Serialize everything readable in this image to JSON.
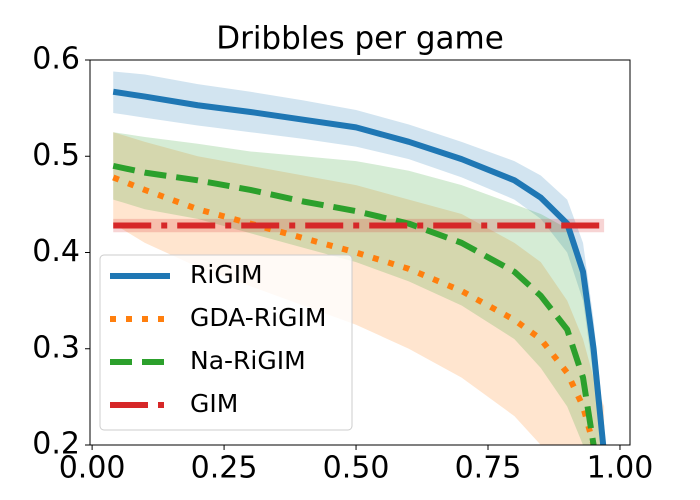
{
  "chart_data": {
    "type": "line",
    "title": "Dribbles per game",
    "x": [
      0.04,
      0.1,
      0.2,
      0.3,
      0.4,
      0.5,
      0.6,
      0.7,
      0.8,
      0.85,
      0.9,
      0.93,
      0.95,
      0.97
    ],
    "series": [
      {
        "name": "RiGIM",
        "color": "#1f77b4",
        "style": "solid",
        "values": [
          0.567,
          0.562,
          0.553,
          0.546,
          0.538,
          0.53,
          0.515,
          0.497,
          0.475,
          0.457,
          0.43,
          0.38,
          0.3,
          0.19
        ],
        "lower": [
          0.545,
          0.54,
          0.532,
          0.525,
          0.518,
          0.51,
          0.497,
          0.478,
          0.455,
          0.435,
          0.4,
          0.35,
          0.27,
          0.18
        ],
        "upper": [
          0.588,
          0.585,
          0.575,
          0.567,
          0.558,
          0.548,
          0.533,
          0.515,
          0.495,
          0.48,
          0.455,
          0.41,
          0.33,
          0.22
        ]
      },
      {
        "name": "GDA-RiGIM",
        "color": "#ff7f0e",
        "style": "dotted",
        "values": [
          0.478,
          0.465,
          0.445,
          0.43,
          0.415,
          0.4,
          0.383,
          0.36,
          0.33,
          0.31,
          0.275,
          0.24,
          0.2,
          0.15
        ],
        "lower": [
          0.43,
          0.41,
          0.385,
          0.365,
          0.345,
          0.325,
          0.3,
          0.27,
          0.23,
          0.2,
          0.17,
          0.15,
          0.15,
          0.15
        ],
        "upper": [
          0.525,
          0.515,
          0.5,
          0.49,
          0.48,
          0.47,
          0.455,
          0.44,
          0.41,
          0.39,
          0.35,
          0.31,
          0.27,
          0.24
        ]
      },
      {
        "name": "Na-RiGIM",
        "color": "#2ca02c",
        "style": "dashed",
        "values": [
          0.49,
          0.483,
          0.475,
          0.465,
          0.453,
          0.443,
          0.43,
          0.41,
          0.38,
          0.355,
          0.32,
          0.27,
          0.2,
          0.15
        ],
        "lower": [
          0.455,
          0.445,
          0.435,
          0.42,
          0.405,
          0.39,
          0.37,
          0.345,
          0.31,
          0.28,
          0.24,
          0.2,
          0.17,
          0.15
        ],
        "upper": [
          0.525,
          0.52,
          0.513,
          0.505,
          0.5,
          0.495,
          0.485,
          0.47,
          0.45,
          0.44,
          0.425,
          0.38,
          0.3,
          0.22
        ]
      },
      {
        "name": "GIM",
        "color": "#d62728",
        "style": "dashdot",
        "values": [
          0.428,
          0.428,
          0.428,
          0.428,
          0.428,
          0.428,
          0.428,
          0.428,
          0.428,
          0.428,
          0.428,
          0.428,
          0.428,
          0.428
        ],
        "lower": [
          0.421,
          0.421,
          0.421,
          0.421,
          0.421,
          0.421,
          0.421,
          0.421,
          0.421,
          0.421,
          0.421,
          0.421,
          0.421,
          0.421
        ],
        "upper": [
          0.435,
          0.435,
          0.435,
          0.435,
          0.435,
          0.435,
          0.435,
          0.435,
          0.435,
          0.435,
          0.435,
          0.435,
          0.435,
          0.435
        ]
      }
    ],
    "xlim": [
      -0.004,
      1.019
    ],
    "ylim": [
      0.2,
      0.6
    ],
    "xticks": [
      {
        "value": 0,
        "label": "0.00"
      },
      {
        "value": 0.25,
        "label": "0.25"
      },
      {
        "value": 0.5,
        "label": "0.50"
      },
      {
        "value": 0.75,
        "label": "0.75"
      },
      {
        "value": 1,
        "label": "1.00"
      }
    ],
    "yticks": [
      0.2,
      0.3,
      0.4,
      0.5,
      0.6
    ],
    "legend": "lower left"
  }
}
